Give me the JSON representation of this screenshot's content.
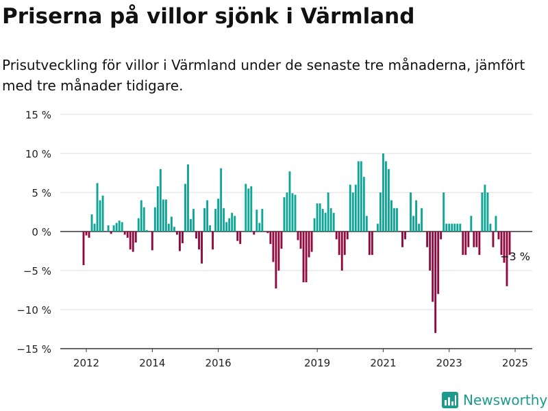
{
  "title": "Priserna på villor sjönk i Värmland",
  "subtitle": "Prisutveckling för villor i Värmland under de senaste tre månaderna, jämfört med tre månader tidigare.",
  "brand": "Newsworthy",
  "colors": {
    "positive": "#0fa596",
    "negative": "#8e0a3f",
    "grid": "#dddddd",
    "axis": "#333333",
    "text": "#222222"
  },
  "chart_data": {
    "type": "bar",
    "start": "2011-12",
    "frequency": "monthly",
    "ylim": [
      -15,
      15
    ],
    "yticks": [
      15,
      10,
      5,
      0,
      -5,
      -10,
      -15
    ],
    "ytick_labels": [
      "15 %",
      "10 %",
      "5 %",
      "0 %",
      "−5 %",
      "−10 %",
      "−15 %"
    ],
    "xticks": [
      "2012",
      "2014",
      "2016",
      "2019",
      "2021",
      "2023",
      "2025"
    ],
    "annotation": {
      "text": "−3 %",
      "date": "2025-01",
      "value": -3
    },
    "values": [
      -4.3,
      -0.5,
      -0.8,
      2.2,
      1.0,
      6.2,
      4.0,
      4.6,
      0.0,
      0.8,
      -0.3,
      0.8,
      1.1,
      1.4,
      1.2,
      -0.4,
      -0.8,
      -2.3,
      -2.6,
      -1.4,
      1.7,
      4.0,
      3.1,
      0.2,
      0.0,
      -2.4,
      3.1,
      5.8,
      8.0,
      4.1,
      4.1,
      1.0,
      1.9,
      0.6,
      -0.4,
      -2.5,
      -1.5,
      6.1,
      8.6,
      1.6,
      2.9,
      -0.9,
      -2.3,
      -4.1,
      3.0,
      4.0,
      0.8,
      -2.3,
      2.9,
      4.2,
      8.1,
      3.0,
      1.2,
      1.7,
      2.4,
      2.0,
      -1.2,
      -1.6,
      0.0,
      6.1,
      5.5,
      5.8,
      -0.4,
      2.8,
      1.1,
      2.9,
      0.0,
      -0.2,
      -1.6,
      -3.9,
      -7.3,
      -5.0,
      -2.2,
      4.4,
      5.0,
      7.7,
      4.9,
      4.7,
      -1.1,
      -2.2,
      -6.5,
      -6.5,
      -3.3,
      -2.6,
      1.7,
      3.6,
      3.6,
      2.9,
      2.4,
      5.0,
      3.0,
      2.4,
      -1.0,
      -3.0,
      -5.0,
      -3.0,
      -1.0,
      6.0,
      5.0,
      6.0,
      9.0,
      9.0,
      7.0,
      2.0,
      -3.0,
      -3.0,
      0.0,
      1.0,
      5.0,
      10.0,
      9.0,
      8.0,
      4.0,
      3.0,
      3.0,
      0.0,
      -2.0,
      -1.0,
      0.0,
      5.0,
      2.0,
      4.0,
      1.0,
      3.0,
      0.0,
      -2.0,
      -5.0,
      -9.0,
      -13.0,
      -8.0,
      -1.0,
      5.0,
      1.0,
      1.0,
      1.0,
      1.0,
      1.0,
      1.0,
      -3.0,
      -3.0,
      -2.0,
      2.0,
      -2.0,
      -2.0,
      -3.0,
      5.0,
      6.0,
      5.0,
      1.0,
      -2.0,
      2.0,
      -1.0,
      -3.0,
      -4.0,
      -7.0,
      -3.0
    ]
  }
}
